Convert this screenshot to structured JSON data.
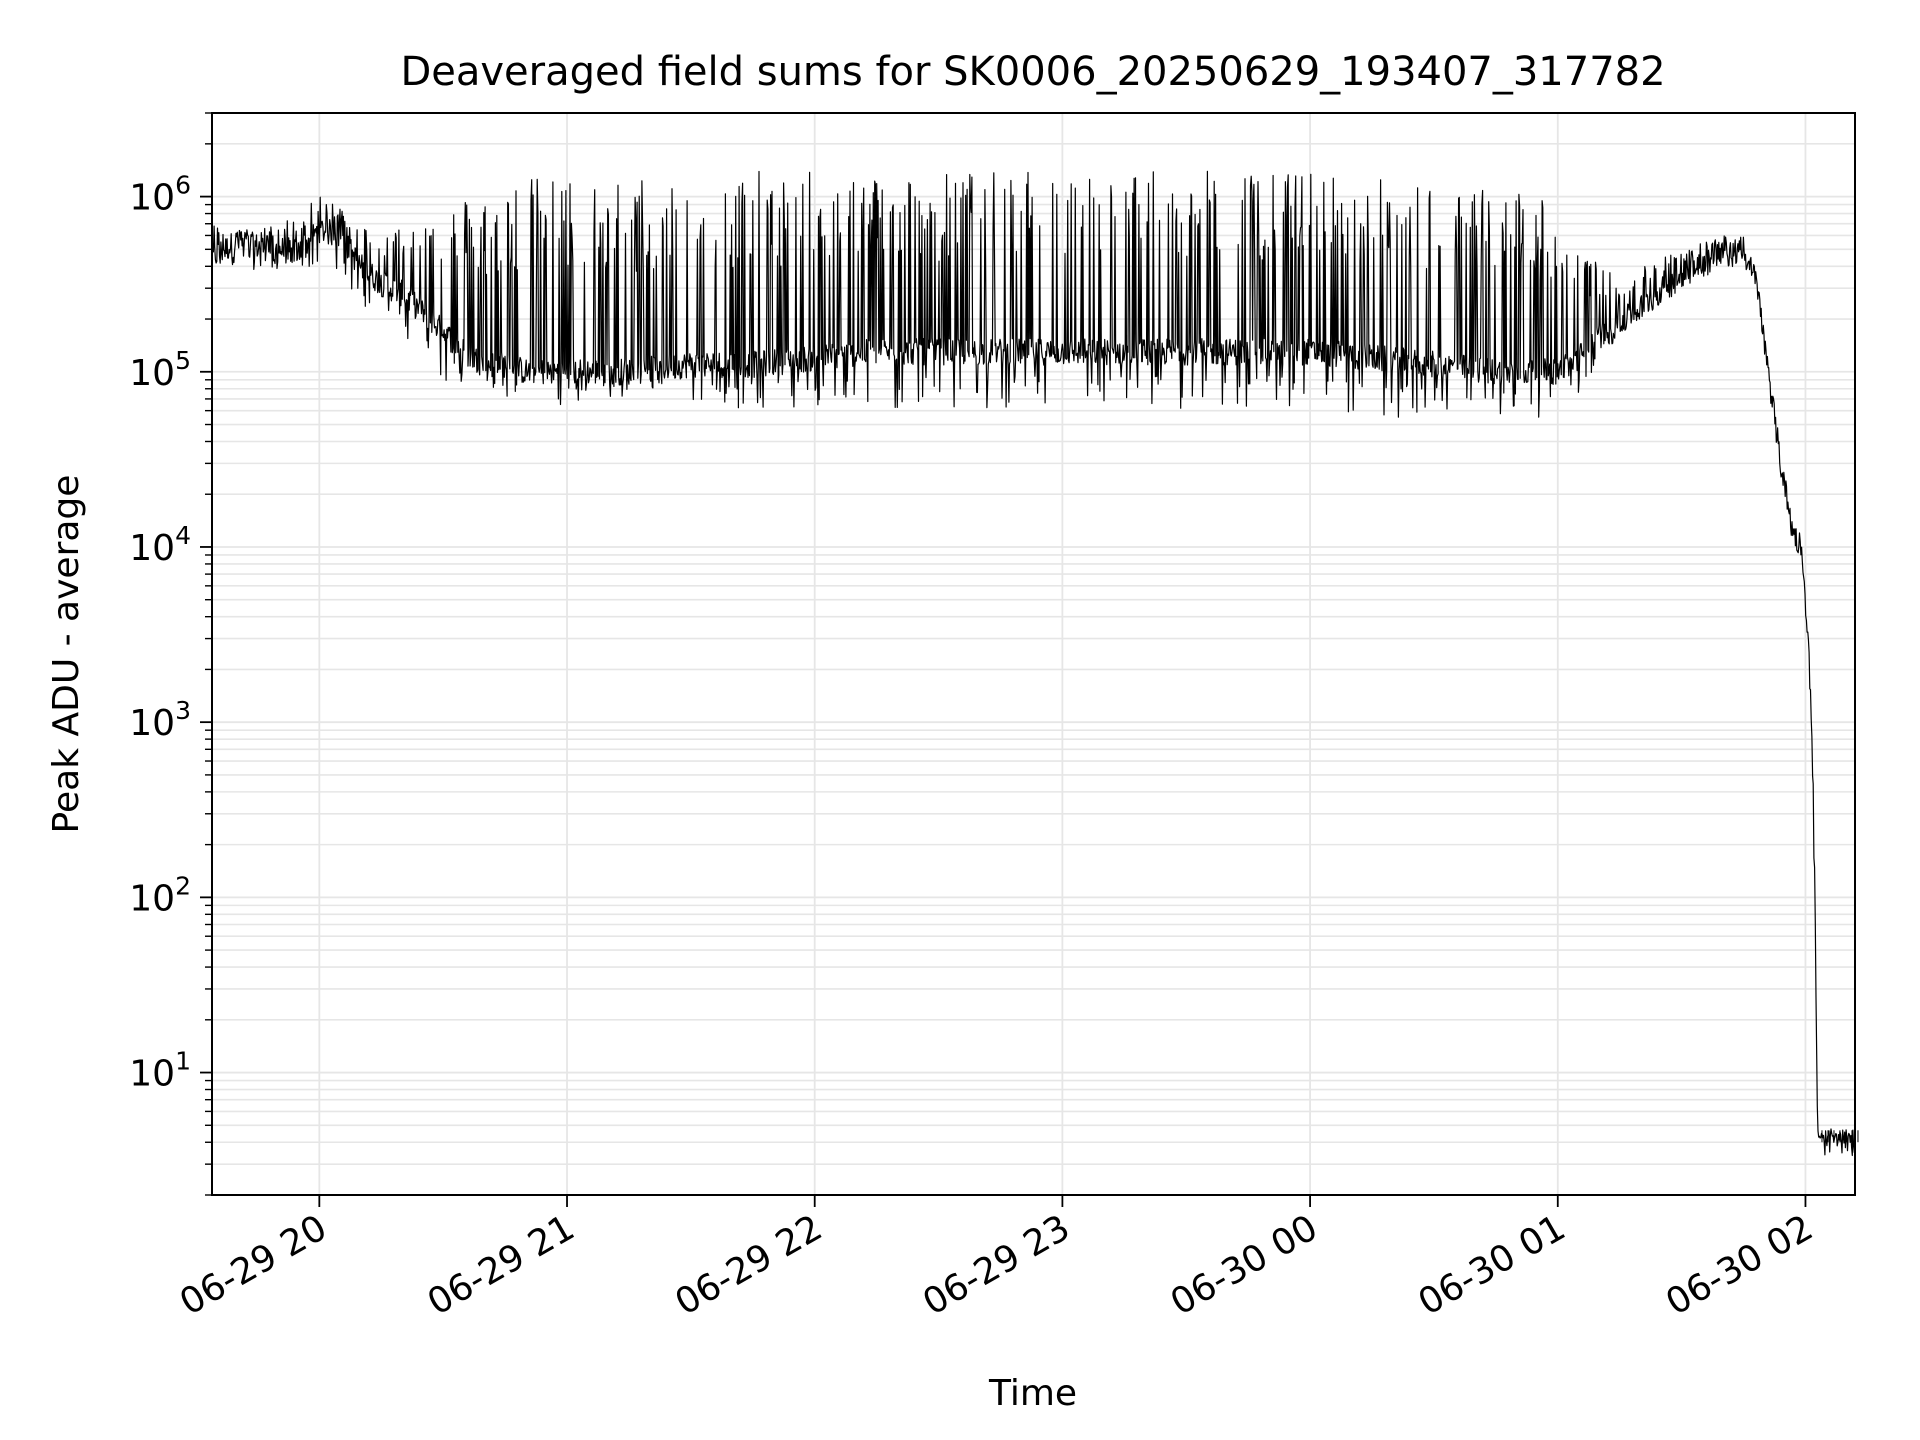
{
  "chart_data": {
    "type": "line",
    "title": "Deaveraged field sums for SK0006_20250629_193407_317782",
    "xlabel": "Time",
    "ylabel": "Peak ADU - average",
    "yscale": "log",
    "ylim": [
      2,
      3000000
    ],
    "xlim": [
      "2025-06-29 19:34",
      "2025-06-30 02:12"
    ],
    "grid": {
      "major": true,
      "minor": true
    },
    "line_color": "#000000",
    "grid_color": "#e6e6e6",
    "x_ticks": [
      {
        "value": "2025-06-29 20:00",
        "label": "06-29 20"
      },
      {
        "value": "2025-06-29 21:00",
        "label": "06-29 21"
      },
      {
        "value": "2025-06-29 22:00",
        "label": "06-29 22"
      },
      {
        "value": "2025-06-29 23:00",
        "label": "06-29 23"
      },
      {
        "value": "2025-06-30 00:00",
        "label": "06-30 00"
      },
      {
        "value": "2025-06-30 01:00",
        "label": "06-30 01"
      },
      {
        "value": "2025-06-30 02:00",
        "label": "06-30 02"
      }
    ],
    "y_ticks": [
      {
        "value": 10,
        "base": "10",
        "exp": "1"
      },
      {
        "value": 100,
        "base": "10",
        "exp": "2"
      },
      {
        "value": 1000,
        "base": "10",
        "exp": "3"
      },
      {
        "value": 10000,
        "base": "10",
        "exp": "4"
      },
      {
        "value": 100000,
        "base": "10",
        "exp": "5"
      },
      {
        "value": 1000000,
        "base": "10",
        "exp": "6"
      }
    ],
    "series": [
      {
        "x": [
          "2025-06-29 19:34",
          "2025-06-29 19:40",
          "2025-06-29 19:45",
          "2025-06-29 19:50",
          "2025-06-29 19:55",
          "2025-06-29 20:00",
          "2025-06-29 20:05",
          "2025-06-29 20:10",
          "2025-06-29 20:15",
          "2025-06-29 20:20",
          "2025-06-29 20:25",
          "2025-06-29 20:30",
          "2025-06-29 20:35",
          "2025-06-29 20:40",
          "2025-06-29 20:45",
          "2025-06-29 20:50",
          "2025-06-29 21:00",
          "2025-06-29 21:15",
          "2025-06-29 21:30",
          "2025-06-29 21:45",
          "2025-06-29 22:00",
          "2025-06-29 22:15",
          "2025-06-29 22:30",
          "2025-06-29 22:45",
          "2025-06-29 23:00",
          "2025-06-29 23:15",
          "2025-06-29 23:30",
          "2025-06-29 23:45",
          "2025-06-30 00:00",
          "2025-06-30 00:15",
          "2025-06-30 00:30",
          "2025-06-30 00:45",
          "2025-06-30 01:00",
          "2025-06-30 01:05",
          "2025-06-30 01:10",
          "2025-06-30 01:15",
          "2025-06-30 01:20",
          "2025-06-30 01:25",
          "2025-06-30 01:30",
          "2025-06-30 01:35",
          "2025-06-30 01:40",
          "2025-06-30 01:45",
          "2025-06-30 01:48",
          "2025-06-30 01:51",
          "2025-06-30 01:54",
          "2025-06-30 01:57",
          "2025-06-30 01:59",
          "2025-06-30 02:00",
          "2025-06-30 02:01",
          "2025-06-30 02:02",
          "2025-06-30 02:03",
          "2025-06-30 02:05",
          "2025-06-30 02:12"
        ],
        "values": [
          450000,
          550000,
          520000,
          500000,
          480000,
          650000,
          600000,
          400000,
          320000,
          280000,
          220000,
          170000,
          130000,
          110000,
          110000,
          100000,
          100000,
          100000,
          110000,
          110000,
          120000,
          130000,
          130000,
          130000,
          130000,
          130000,
          130000,
          130000,
          130000,
          120000,
          110000,
          100000,
          100000,
          120000,
          160000,
          190000,
          230000,
          290000,
          350000,
          410000,
          460000,
          480000,
          330000,
          100000,
          30000,
          12000,
          10000,
          5000,
          2000,
          300,
          4,
          4,
          4
        ],
        "envelope_high": [
          700000,
          650000,
          650000,
          700000,
          800000,
          1000000,
          900000,
          700000,
          600000,
          700000,
          800000,
          900000,
          1000000,
          1100000,
          1200000,
          1300000,
          1300000,
          1300000,
          1400000,
          1400000,
          1400000,
          1400000,
          1400000,
          1400000,
          1400000,
          1400000,
          1400000,
          1400000,
          1400000,
          1300000,
          1200000,
          1100000,
          1100000,
          600000,
          400000,
          350000,
          400000,
          450000,
          500000,
          550000,
          600000,
          650000,
          400000,
          120000,
          35000,
          14000,
          11000,
          5500,
          2300,
          400,
          4.5,
          4.5,
          4.5
        ],
        "envelope_low": [
          400000,
          400000,
          380000,
          380000,
          380000,
          400000,
          350000,
          250000,
          180000,
          150000,
          120000,
          90000,
          80000,
          70000,
          70000,
          65000,
          65000,
          65000,
          65000,
          60000,
          60000,
          60000,
          60000,
          60000,
          60000,
          60000,
          60000,
          60000,
          60000,
          55000,
          55000,
          55000,
          55000,
          70000,
          120000,
          160000,
          200000,
          260000,
          320000,
          380000,
          430000,
          450000,
          300000,
          90000,
          27000,
          10000,
          9000,
          4500,
          1700,
          200,
          4,
          4,
          4
        ]
      }
    ]
  }
}
